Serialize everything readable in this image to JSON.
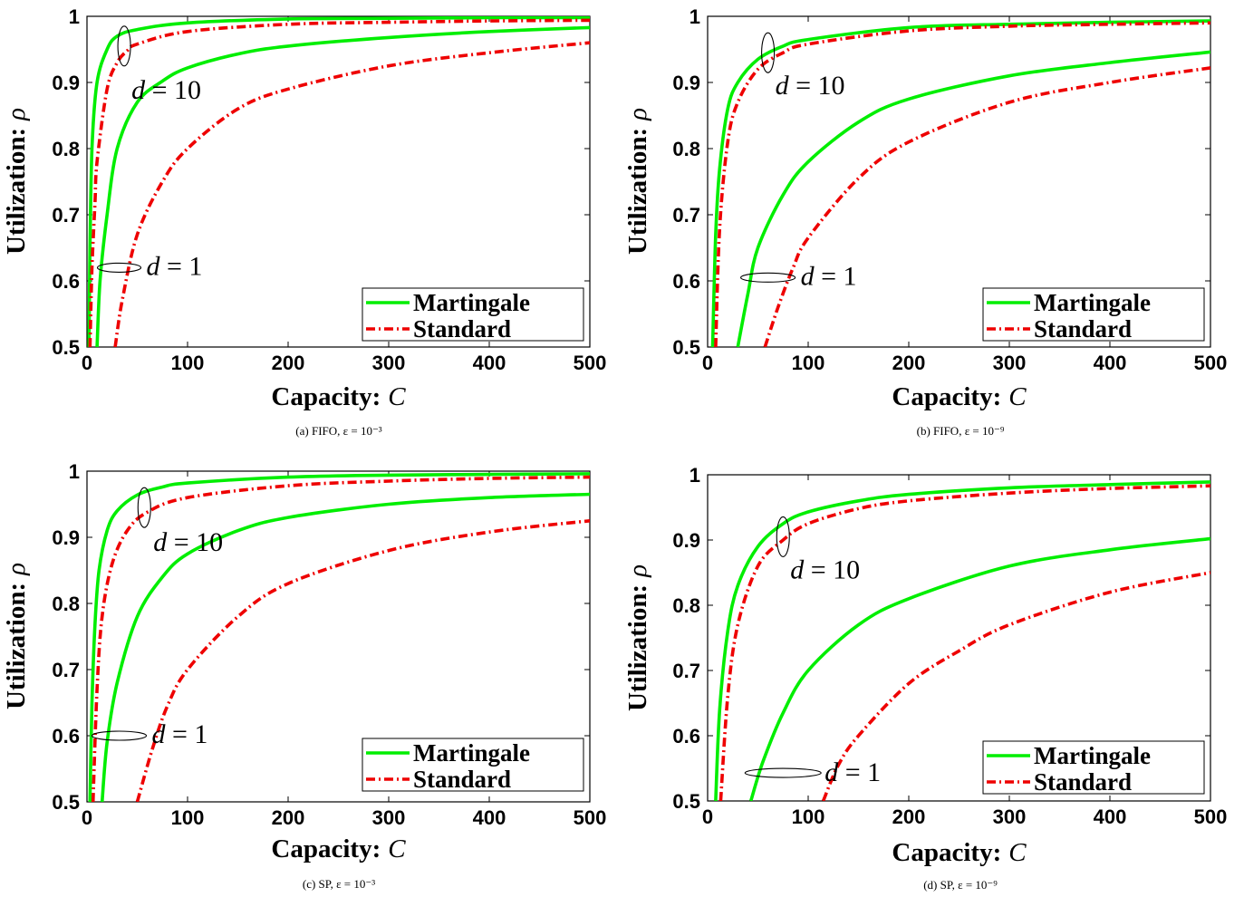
{
  "chart_data": [
    {
      "type": "line",
      "caption": "(a) FIFO, ε = 10⁻³",
      "xlabel_text": "Capacity:",
      "xlabel_var": "C",
      "ylabel_text": "Utilization:",
      "ylabel_var": "ρ",
      "xlim": [
        0,
        500
      ],
      "ylim": [
        0.5,
        1
      ],
      "xticks": [
        "0",
        "100",
        "200",
        "300",
        "400",
        "500"
      ],
      "yticks": [
        "0.5",
        "0.6",
        "0.7",
        "0.8",
        "0.9",
        "1"
      ],
      "grid": false,
      "legend_position": "bottom-right",
      "series": [
        {
          "name": "Martingale",
          "color": "#00ee00",
          "style": "solid",
          "group": "d=10",
          "x": [
            2,
            3,
            5,
            10,
            20,
            30,
            50,
            100,
            200,
            300,
            400,
            500
          ],
          "y": [
            0.5,
            0.65,
            0.8,
            0.9,
            0.95,
            0.97,
            0.98,
            0.99,
            0.996,
            0.997,
            0.998,
            0.998
          ]
        },
        {
          "name": "Standard",
          "color": "#ee0000",
          "style": "dashdot",
          "group": "d=10",
          "x": [
            3,
            5,
            8,
            10,
            20,
            30,
            40,
            50,
            100,
            200,
            300,
            400,
            500
          ],
          "y": [
            0.5,
            0.62,
            0.72,
            0.78,
            0.89,
            0.93,
            0.948,
            0.958,
            0.977,
            0.988,
            0.991,
            0.993,
            0.994
          ]
        },
        {
          "name": "Martingale",
          "color": "#00ee00",
          "style": "solid",
          "group": "d=1",
          "x": [
            10,
            13,
            20,
            30,
            50,
            75,
            100,
            150,
            200,
            300,
            400,
            500
          ],
          "y": [
            0.5,
            0.6,
            0.7,
            0.8,
            0.87,
            0.902,
            0.922,
            0.943,
            0.955,
            0.968,
            0.977,
            0.983
          ]
        },
        {
          "name": "Standard",
          "color": "#ee0000",
          "style": "dashdot",
          "group": "d=1",
          "x": [
            28,
            35,
            50,
            75,
            100,
            150,
            200,
            300,
            400,
            500
          ],
          "y": [
            0.5,
            0.57,
            0.67,
            0.75,
            0.8,
            0.86,
            0.89,
            0.925,
            0.945,
            0.96
          ]
        }
      ],
      "annotations": [
        {
          "label": "d = 10",
          "target_x": 37,
          "target_y": 0.955
        },
        {
          "label": "d = 1",
          "target_x": 32,
          "target_y": 0.62
        }
      ],
      "legend": [
        "Martingale",
        "Standard"
      ]
    },
    {
      "type": "line",
      "caption": "(b) FIFO, ε = 10⁻⁹",
      "xlabel_text": "Capacity:",
      "xlabel_var": "C",
      "ylabel_text": "Utilization:",
      "ylabel_var": "ρ",
      "xlim": [
        0,
        500
      ],
      "ylim": [
        0.5,
        1
      ],
      "xticks": [
        "0",
        "100",
        "200",
        "300",
        "400",
        "500"
      ],
      "yticks": [
        "0.5",
        "0.6",
        "0.7",
        "0.8",
        "0.9",
        "1"
      ],
      "grid": false,
      "legend_position": "bottom-right",
      "series": [
        {
          "name": "Martingale",
          "color": "#00ee00",
          "style": "solid",
          "group": "d=10",
          "x": [
            5,
            8,
            12,
            20,
            30,
            50,
            75,
            100,
            200,
            300,
            400,
            500
          ],
          "y": [
            0.5,
            0.67,
            0.77,
            0.86,
            0.9,
            0.935,
            0.955,
            0.965,
            0.983,
            0.988,
            0.991,
            0.993
          ]
        },
        {
          "name": "Standard",
          "color": "#ee0000",
          "style": "dashdot",
          "group": "d=10",
          "x": [
            8,
            12,
            20,
            30,
            50,
            75,
            100,
            200,
            300,
            400,
            500
          ],
          "y": [
            0.5,
            0.68,
            0.81,
            0.87,
            0.92,
            0.945,
            0.958,
            0.978,
            0.985,
            0.988,
            0.99
          ]
        },
        {
          "name": "Martingale",
          "color": "#00ee00",
          "style": "solid",
          "group": "d=1",
          "x": [
            30,
            40,
            50,
            75,
            100,
            150,
            200,
            300,
            400,
            500
          ],
          "y": [
            0.5,
            0.58,
            0.65,
            0.73,
            0.78,
            0.84,
            0.875,
            0.91,
            0.93,
            0.946
          ]
        },
        {
          "name": "Standard",
          "color": "#ee0000",
          "style": "dashdot",
          "group": "d=1",
          "x": [
            57,
            70,
            85,
            100,
            150,
            200,
            300,
            400,
            500
          ],
          "y": [
            0.5,
            0.56,
            0.62,
            0.665,
            0.755,
            0.81,
            0.87,
            0.9,
            0.922
          ]
        }
      ],
      "annotations": [
        {
          "label": "d = 10",
          "target_x": 60,
          "target_y": 0.945
        },
        {
          "label": "d = 1",
          "target_x": 60,
          "target_y": 0.605
        }
      ],
      "legend": [
        "Martingale",
        "Standard"
      ]
    },
    {
      "type": "line",
      "caption": "(c) SP, ε = 10⁻³",
      "xlabel_text": "Capacity:",
      "xlabel_var": "C",
      "ylabel_text": "Utilization:",
      "ylabel_var": "ρ",
      "xlim": [
        0,
        500
      ],
      "ylim": [
        0.5,
        1
      ],
      "xticks": [
        "0",
        "100",
        "200",
        "300",
        "400",
        "500"
      ],
      "yticks": [
        "0.5",
        "0.6",
        "0.7",
        "0.8",
        "0.9",
        "1"
      ],
      "grid": false,
      "legend_position": "bottom-right",
      "series": [
        {
          "name": "Martingale",
          "color": "#00ee00",
          "style": "solid",
          "group": "d=10",
          "x": [
            3,
            5,
            8,
            12,
            20,
            30,
            50,
            75,
            100,
            200,
            300,
            400,
            500
          ],
          "y": [
            0.5,
            0.65,
            0.77,
            0.85,
            0.91,
            0.94,
            0.964,
            0.976,
            0.982,
            0.991,
            0.994,
            0.995,
            0.996
          ]
        },
        {
          "name": "Standard",
          "color": "#ee0000",
          "style": "dashdot",
          "group": "d=10",
          "x": [
            6,
            10,
            15,
            25,
            40,
            60,
            100,
            200,
            300,
            400,
            500
          ],
          "y": [
            0.5,
            0.67,
            0.78,
            0.86,
            0.91,
            0.938,
            0.96,
            0.978,
            0.985,
            0.989,
            0.991
          ]
        },
        {
          "name": "Martingale",
          "color": "#00ee00",
          "style": "solid",
          "group": "d=1",
          "x": [
            15,
            20,
            30,
            50,
            75,
            100,
            150,
            200,
            300,
            400,
            500
          ],
          "y": [
            0.5,
            0.59,
            0.68,
            0.78,
            0.84,
            0.875,
            0.91,
            0.93,
            0.95,
            0.96,
            0.965
          ]
        },
        {
          "name": "Standard",
          "color": "#ee0000",
          "style": "dashdot",
          "group": "d=1",
          "x": [
            50,
            65,
            80,
            100,
            150,
            200,
            300,
            400,
            500
          ],
          "y": [
            0.5,
            0.58,
            0.645,
            0.7,
            0.78,
            0.83,
            0.88,
            0.908,
            0.925
          ]
        }
      ],
      "annotations": [
        {
          "label": "d = 10",
          "target_x": 57,
          "target_y": 0.945
        },
        {
          "label": "d = 1",
          "target_x": 32,
          "target_y": 0.6
        }
      ],
      "legend": [
        "Martingale",
        "Standard"
      ]
    },
    {
      "type": "line",
      "caption": "(d) SP, ε = 10⁻⁹",
      "xlabel_text": "Capacity:",
      "xlabel_var": "C",
      "ylabel_text": "Utilization:",
      "ylabel_var": "ρ",
      "xlim": [
        0,
        500
      ],
      "ylim": [
        0.5,
        1
      ],
      "xticks": [
        "0",
        "100",
        "200",
        "300",
        "400",
        "500"
      ],
      "yticks": [
        "0.5",
        "0.6",
        "0.7",
        "0.8",
        "0.9",
        "1"
      ],
      "grid": false,
      "legend_position": "bottom-right",
      "series": [
        {
          "name": "Martingale",
          "color": "#00ee00",
          "style": "solid",
          "group": "d=10",
          "x": [
            8,
            12,
            20,
            30,
            50,
            75,
            100,
            150,
            200,
            300,
            400,
            500
          ],
          "y": [
            0.5,
            0.64,
            0.76,
            0.83,
            0.89,
            0.925,
            0.943,
            0.96,
            0.97,
            0.98,
            0.985,
            0.989
          ]
        },
        {
          "name": "Standard",
          "color": "#ee0000",
          "style": "dashdot",
          "group": "d=10",
          "x": [
            13,
            20,
            30,
            50,
            75,
            100,
            150,
            200,
            300,
            400,
            500
          ],
          "y": [
            0.5,
            0.66,
            0.77,
            0.86,
            0.9,
            0.925,
            0.948,
            0.96,
            0.972,
            0.979,
            0.983
          ]
        },
        {
          "name": "Martingale",
          "color": "#00ee00",
          "style": "solid",
          "group": "d=1",
          "x": [
            43,
            55,
            75,
            100,
            150,
            200,
            300,
            400,
            500
          ],
          "y": [
            0.5,
            0.56,
            0.635,
            0.7,
            0.77,
            0.81,
            0.86,
            0.885,
            0.902
          ]
        },
        {
          "name": "Standard",
          "color": "#ee0000",
          "style": "dashdot",
          "group": "d=1",
          "x": [
            115,
            130,
            150,
            200,
            250,
            300,
            400,
            500
          ],
          "y": [
            0.5,
            0.555,
            0.6,
            0.68,
            0.73,
            0.77,
            0.82,
            0.85
          ]
        }
      ],
      "annotations": [
        {
          "label": "d = 10",
          "target_x": 75,
          "target_y": 0.905
        },
        {
          "label": "d = 1",
          "target_x": 75,
          "target_y": 0.543
        }
      ],
      "legend": [
        "Martingale",
        "Standard"
      ]
    }
  ]
}
